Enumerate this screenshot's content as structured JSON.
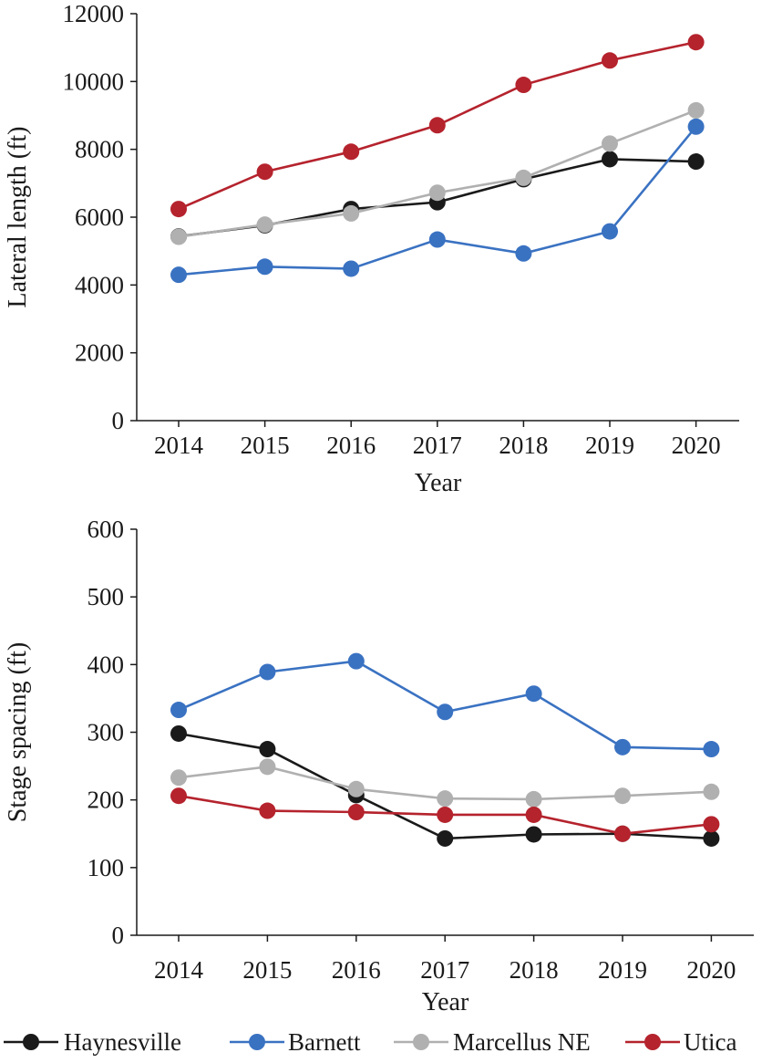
{
  "legend": [
    {
      "name": "Haynesville",
      "color": "#1a1a1a"
    },
    {
      "name": "Barnett",
      "color": "#3a72c2"
    },
    {
      "name": "Marcellus NE",
      "color": "#b0b0b0"
    },
    {
      "name": "Utica",
      "color": "#b5232d"
    }
  ],
  "chart_data": [
    {
      "type": "line",
      "xlabel": "Year",
      "ylabel": "Lateral length (ft)",
      "x": [
        "2014",
        "2015",
        "2016",
        "2017",
        "2018",
        "2019",
        "2020"
      ],
      "ylim": [
        0,
        12000
      ],
      "yticks": [
        "0",
        "2000",
        "4000",
        "6000",
        "8000",
        "10000",
        "12000"
      ],
      "grid": false,
      "series": [
        {
          "name": "Haynesville",
          "color": "#1a1a1a",
          "values": [
            5430,
            5760,
            6240,
            6440,
            7120,
            7710,
            7640
          ]
        },
        {
          "name": "Barnett",
          "color": "#3a72c2",
          "values": [
            4300,
            4540,
            4480,
            5340,
            4930,
            5580,
            8670
          ]
        },
        {
          "name": "Marcellus NE",
          "color": "#b0b0b0",
          "values": [
            5420,
            5780,
            6110,
            6720,
            7160,
            8170,
            9150
          ]
        },
        {
          "name": "Utica",
          "color": "#b5232d",
          "values": [
            6240,
            7340,
            7930,
            8710,
            9900,
            10620,
            11160
          ]
        }
      ]
    },
    {
      "type": "line",
      "xlabel": "Year",
      "ylabel": "Stage spacing (ft)",
      "x": [
        "2014",
        "2015",
        "2016",
        "2017",
        "2018",
        "2019",
        "2020"
      ],
      "ylim": [
        0,
        600
      ],
      "yticks": [
        "0",
        "100",
        "200",
        "300",
        "400",
        "500",
        "600"
      ],
      "grid": false,
      "series": [
        {
          "name": "Haynesville",
          "color": "#1a1a1a",
          "values": [
            298,
            275,
            207,
            143,
            149,
            150,
            143
          ]
        },
        {
          "name": "Barnett",
          "color": "#3a72c2",
          "values": [
            333,
            389,
            405,
            330,
            357,
            278,
            275
          ]
        },
        {
          "name": "Marcellus NE",
          "color": "#b0b0b0",
          "values": [
            233,
            249,
            216,
            202,
            201,
            206,
            212
          ]
        },
        {
          "name": "Utica",
          "color": "#b5232d",
          "values": [
            206,
            184,
            182,
            178,
            178,
            150,
            164
          ]
        }
      ]
    }
  ]
}
